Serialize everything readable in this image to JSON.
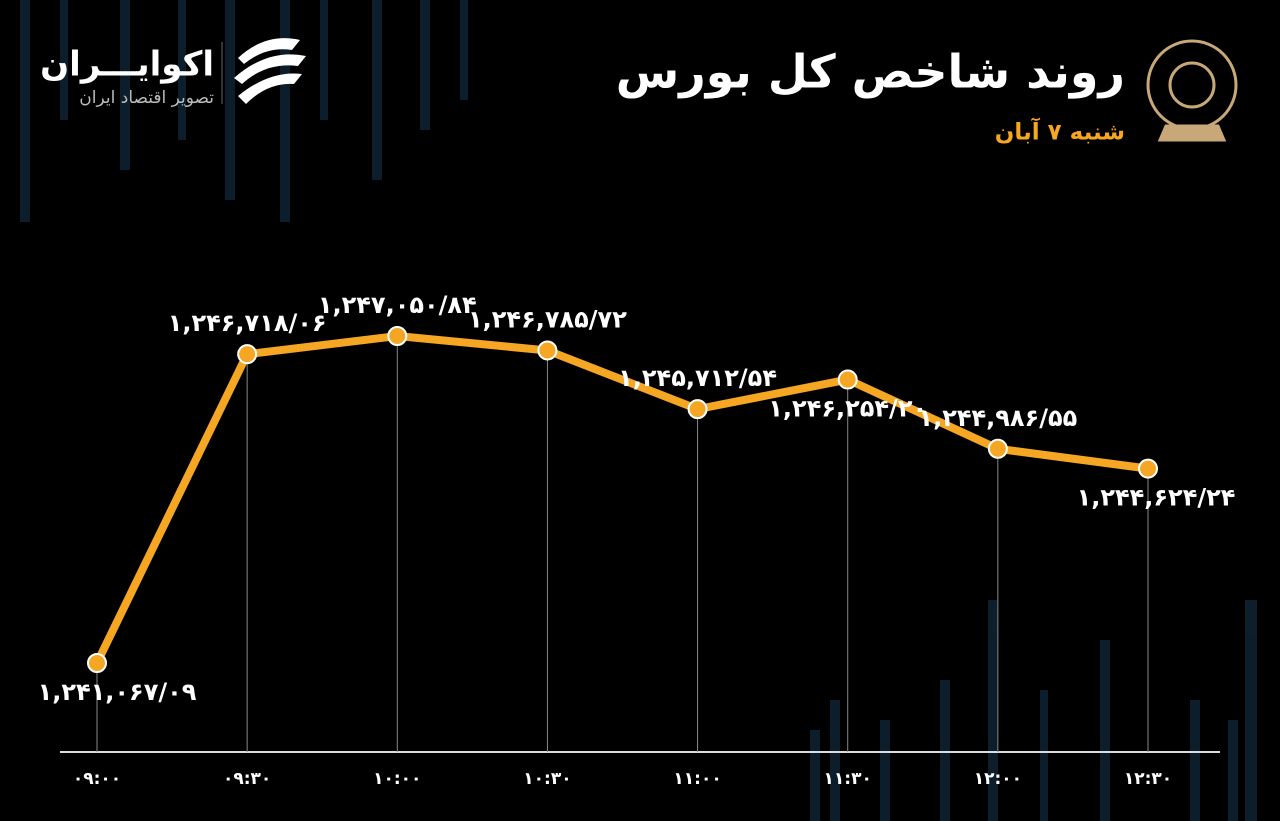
{
  "chart_data": {
    "type": "line",
    "title": "روند شاخص کل بورس",
    "subtitle": "شنبه ۷ آبان",
    "brand": "اکوایـــران",
    "brand_tagline": "تصویر اقتصاد ایران",
    "categories": [
      "۰۹:۰۰",
      "۰۹:۳۰",
      "۱۰:۰۰",
      "۱۰:۳۰",
      "۱۱:۰۰",
      "۱۱:۳۰",
      "۱۲:۰۰",
      "۱۲:۳۰"
    ],
    "values": [
      1241067.09,
      1246718.06,
      1247050.84,
      1246785.72,
      1245712.54,
      1246254.2,
      1244986.55,
      1244624.24
    ],
    "value_labels": [
      "۱,۲۴۱,۰۶۷/۰۹",
      "۱,۲۴۶,۷۱۸/۰۶",
      "۱,۲۴۷,۰۵۰/۸۴",
      "۱,۲۴۶,۷۸۵/۷۲",
      "۱,۲۴۵,۷۱۲/۵۴",
      "۱,۲۴۶,۲۵۴/۲۰",
      "۱,۲۴۴,۹۸۶/۵۵",
      "۱,۲۴۴,۶۲۴/۲۴"
    ],
    "color": "#f5a623"
  }
}
